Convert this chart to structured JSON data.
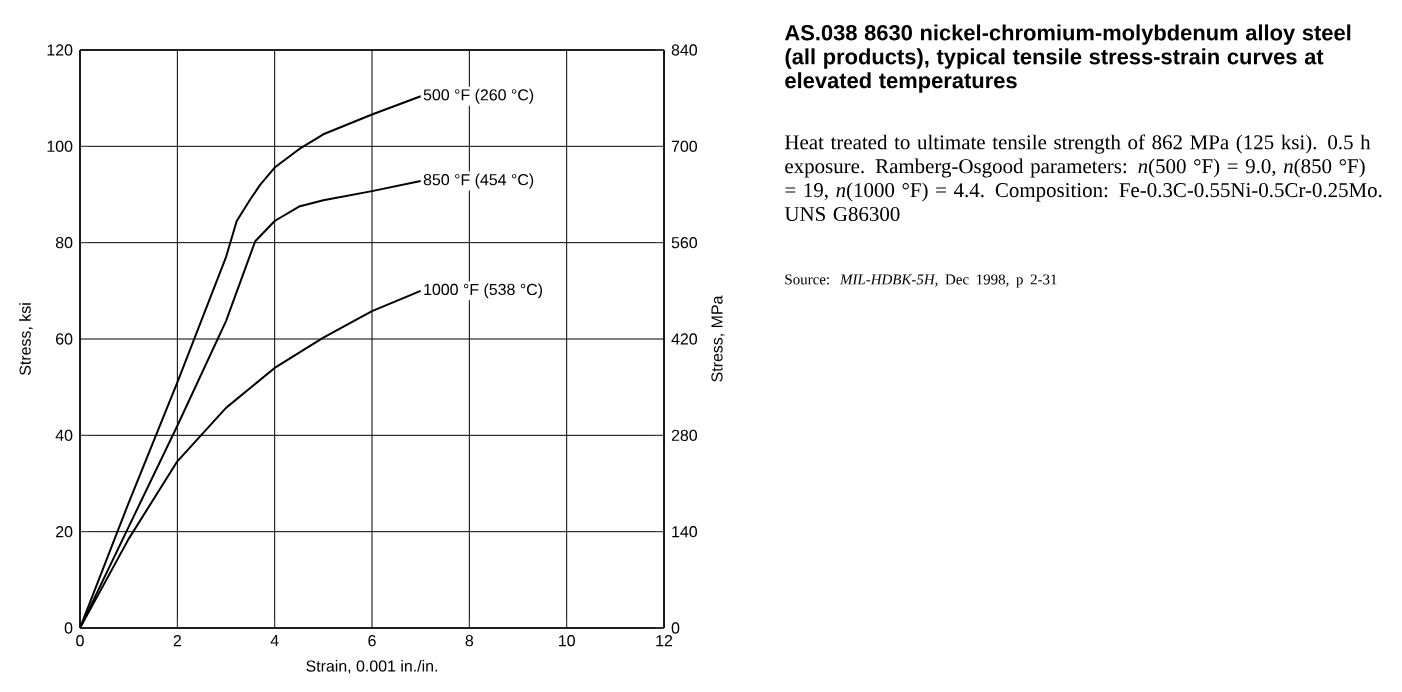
{
  "chart_data": {
    "type": "line",
    "title": "AS.038 8630 nickel-chromium-molybdenum alloy steel (all products), typical tensile stress-strain curves at elevated temperatures",
    "xlabel": "Strain, 0.001 in./in.",
    "ylabel": "Stress, ksi",
    "y2label": "Stress, MPa",
    "annotations": [
      "Heat treated to ultimate tensile strength of 862 MPa (125 ksi). 0.5 h exposure. Ramberg-Osgood parameters: *n*(500 °F) = 9.0, *n*(850 °F) = 19, *n*(1000 °F) = 4.4. Composition: Fe-0.3C-0.55Ni-0.5Cr-0.25Mo. UNS G86300",
      "Source: *MIL-HDBK-5H*, Dec 1998, p 2-31"
    ],
    "xlim": [
      0,
      12
    ],
    "ylim": [
      0,
      120
    ],
    "y2lim": [
      0,
      840
    ],
    "xticks": [
      0,
      2,
      4,
      6,
      8,
      10,
      12
    ],
    "yticks": [
      0,
      20,
      40,
      60,
      80,
      100,
      120
    ],
    "y2ticks": [
      0,
      140,
      280,
      420,
      560,
      700,
      840
    ],
    "grid": true,
    "legend": false,
    "marker": "none",
    "line_style": "solid",
    "series": [
      {
        "name": "500 °F (260 °C)",
        "color": "#000000",
        "x": [
          0,
          1,
          2,
          3,
          3.22,
          3.5,
          3.7,
          4,
          4.5,
          5,
          6,
          7
        ],
        "values": [
          0,
          26,
          51,
          77,
          84.5,
          89,
          92,
          95.6,
          99.4,
          102.5,
          106.6,
          110.4
        ]
      },
      {
        "name": "850 °F (454 °C)",
        "color": "#000000",
        "x": [
          0,
          1,
          2,
          3,
          3.3,
          3.6,
          4,
          4.5,
          5,
          6,
          7
        ],
        "values": [
          0,
          21,
          42,
          63.7,
          72,
          80.3,
          84.5,
          87.5,
          88.8,
          90.7,
          92.8
        ]
      },
      {
        "name": "1000 °F (538 °C)",
        "color": "#000000",
        "x": [
          0,
          1,
          2,
          3,
          4,
          5,
          6,
          7
        ],
        "values": [
          0,
          18.5,
          34.6,
          45.7,
          54,
          60.3,
          65.8,
          70
        ]
      }
    ]
  }
}
